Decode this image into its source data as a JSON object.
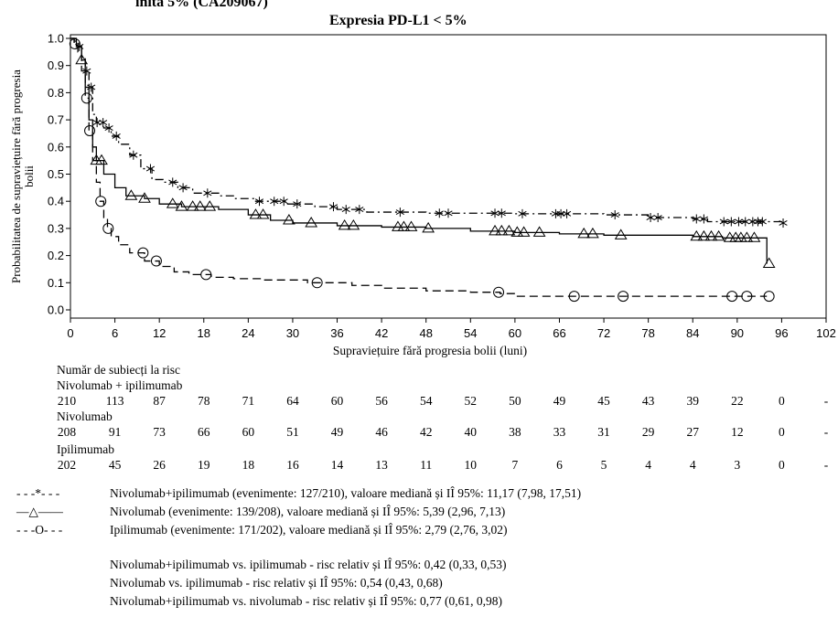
{
  "header": {
    "cut_title": "inita 5% (CA209067)",
    "subtitle": "Expresia PD-L1 < 5%"
  },
  "chart_data": {
    "type": "line",
    "subtitle": "Expresia PD-L1 < 5%",
    "xlabel": "Supraviețuire fără progresia bolii (luni)",
    "ylabel": "Probabilitatea de supraviețuire fără progresia bolii",
    "xlim": [
      0,
      102
    ],
    "ylim": [
      0,
      1.0
    ],
    "x_ticks": [
      0,
      6,
      12,
      18,
      24,
      30,
      36,
      42,
      48,
      54,
      60,
      66,
      72,
      78,
      84,
      90,
      96,
      102
    ],
    "y_ticks": [
      0.0,
      0.1,
      0.2,
      0.3,
      0.4,
      0.5,
      0.6,
      0.7,
      0.8,
      0.9,
      1.0
    ],
    "grid": false,
    "series": [
      {
        "name": "Nivolumab+ipilimumab",
        "color": "#000000",
        "line_style": "dash-dot",
        "marker": "star",
        "steps": [
          [
            0,
            1.0
          ],
          [
            0.5,
            0.99
          ],
          [
            1,
            0.97
          ],
          [
            1.5,
            0.93
          ],
          [
            2,
            0.88
          ],
          [
            2.5,
            0.82
          ],
          [
            3,
            0.72
          ],
          [
            3.5,
            0.69
          ],
          [
            4.5,
            0.67
          ],
          [
            5.5,
            0.64
          ],
          [
            6.5,
            0.61
          ],
          [
            8,
            0.57
          ],
          [
            9.5,
            0.52
          ],
          [
            11,
            0.48
          ],
          [
            12.5,
            0.47
          ],
          [
            14.5,
            0.45
          ],
          [
            16.5,
            0.43
          ],
          [
            20,
            0.42
          ],
          [
            22,
            0.41
          ],
          [
            25,
            0.4
          ],
          [
            29,
            0.39
          ],
          [
            33,
            0.38
          ],
          [
            36,
            0.37
          ],
          [
            40,
            0.36
          ],
          [
            48,
            0.356
          ],
          [
            60,
            0.354
          ],
          [
            72,
            0.35
          ],
          [
            78,
            0.34
          ],
          [
            84,
            0.335
          ],
          [
            86,
            0.325
          ],
          [
            96,
            0.32
          ]
        ],
        "censor_x": [
          1.2,
          2.2,
          2.8,
          3.6,
          4.4,
          5.2,
          6.2,
          8.5,
          10.8,
          13.8,
          15.2,
          18.5,
          25.5,
          27.5,
          28.8,
          30.6,
          35.5,
          37.2,
          39,
          44.5,
          49.8,
          51,
          57.3,
          58.2,
          61,
          65.5,
          66.2,
          67,
          73.5,
          78.3,
          79.3,
          84.5,
          85.5,
          88.2,
          89.2,
          90.2,
          91.1,
          92.1,
          92.8,
          93.4,
          96.2
        ]
      },
      {
        "name": "Nivolumab",
        "color": "#000000",
        "line_style": "solid",
        "marker": "triangle",
        "steps": [
          [
            0,
            1.0
          ],
          [
            0.8,
            0.97
          ],
          [
            1.5,
            0.92
          ],
          [
            2,
            0.82
          ],
          [
            2.5,
            0.7
          ],
          [
            3,
            0.6
          ],
          [
            3.5,
            0.55
          ],
          [
            4.5,
            0.5
          ],
          [
            6,
            0.45
          ],
          [
            7.5,
            0.42
          ],
          [
            10,
            0.41
          ],
          [
            12,
            0.39
          ],
          [
            15,
            0.38
          ],
          [
            20,
            0.37
          ],
          [
            24,
            0.35
          ],
          [
            27,
            0.33
          ],
          [
            30,
            0.32
          ],
          [
            36,
            0.31
          ],
          [
            42,
            0.305
          ],
          [
            48,
            0.3
          ],
          [
            54,
            0.29
          ],
          [
            60,
            0.285
          ],
          [
            66,
            0.28
          ],
          [
            72,
            0.275
          ],
          [
            84,
            0.27
          ],
          [
            88,
            0.265
          ],
          [
            94,
            0.25
          ],
          [
            94,
            0.17
          ]
        ],
        "censor_x": [
          1.5,
          3.5,
          4.2,
          8.2,
          10,
          13.8,
          15,
          16.5,
          17.5,
          18.8,
          25,
          26,
          29.5,
          32.5,
          37,
          38.2,
          44.2,
          45,
          46,
          48.3,
          57.3,
          58.2,
          59.2,
          60.3,
          61.2,
          63.3,
          69.3,
          70.5,
          74.3,
          84.5,
          85.5,
          86.5,
          87.5,
          89,
          89.8,
          90.5,
          91.3,
          92.3,
          94.3
        ]
      },
      {
        "name": "Ipilimumab",
        "color": "#000000",
        "line_style": "dashed",
        "marker": "circle",
        "steps": [
          [
            0,
            1.0
          ],
          [
            0.5,
            0.98
          ],
          [
            1,
            0.95
          ],
          [
            1.5,
            0.88
          ],
          [
            2,
            0.78
          ],
          [
            2.5,
            0.66
          ],
          [
            3,
            0.55
          ],
          [
            3.5,
            0.47
          ],
          [
            4,
            0.4
          ],
          [
            4.5,
            0.34
          ],
          [
            5,
            0.3
          ],
          [
            5.5,
            0.27
          ],
          [
            6.5,
            0.24
          ],
          [
            8,
            0.21
          ],
          [
            10,
            0.18
          ],
          [
            12,
            0.16
          ],
          [
            14,
            0.14
          ],
          [
            16,
            0.13
          ],
          [
            19,
            0.12
          ],
          [
            22,
            0.115
          ],
          [
            26,
            0.11
          ],
          [
            32,
            0.1
          ],
          [
            38,
            0.09
          ],
          [
            42,
            0.08
          ],
          [
            48,
            0.07
          ],
          [
            54,
            0.065
          ],
          [
            58,
            0.06
          ],
          [
            60,
            0.05
          ],
          [
            94,
            0.05
          ]
        ],
        "censor_x": [
          0.6,
          2.6,
          2.2,
          4.1,
          5.1,
          9.8,
          11.6,
          18.3,
          33.3,
          57.8,
          68,
          74.6,
          89.3,
          91.3,
          94.3
        ]
      }
    ]
  },
  "risk_table": {
    "heading": "Număr de subiecți la risc",
    "time_points": [
      0,
      6,
      12,
      18,
      24,
      30,
      36,
      42,
      48,
      54,
      60,
      66,
      72,
      78,
      84,
      90,
      96,
      102
    ],
    "groups": [
      {
        "label": "Nivolumab + ipilimumab",
        "values": [
          "210",
          "113",
          "87",
          "78",
          "71",
          "64",
          "60",
          "56",
          "54",
          "52",
          "50",
          "49",
          "45",
          "43",
          "39",
          "22",
          "0",
          "-"
        ]
      },
      {
        "label": "Nivolumab",
        "values": [
          "208",
          "91",
          "73",
          "66",
          "60",
          "51",
          "49",
          "46",
          "42",
          "40",
          "38",
          "33",
          "31",
          "29",
          "27",
          "12",
          "0",
          "-"
        ]
      },
      {
        "label": "Ipilimumab",
        "values": [
          "202",
          "45",
          "26",
          "19",
          "18",
          "16",
          "14",
          "13",
          "11",
          "10",
          "7",
          "6",
          "5",
          "4",
          "4",
          "3",
          "0",
          "-"
        ]
      }
    ]
  },
  "legend": [
    {
      "symbol": "- - -*- - -",
      "text": "Nivolumab+ipilimumab (evenimente: 127/210), valoare mediană și IÎ 95%: 11,17 (7,98, 17,51)"
    },
    {
      "symbol": "—△——",
      "text": "Nivolumab (evenimente: 139/208), valoare mediană și IÎ 95%: 5,39 (2,96, 7,13)"
    },
    {
      "symbol": "- - -O- - -",
      "text": "Ipilimumab (evenimente: 171/202), valoare mediană și IÎ 95%: 2,79 (2,76, 3,02)"
    }
  ],
  "hazard_ratios": [
    "Nivolumab+ipilimumab vs. ipilimumab - risc relativ și IÎ 95%: 0,42 (0,33, 0,53)",
    "Nivolumab vs. ipilimumab - risc relativ și IÎ 95%: 0,54 (0,43, 0,68)",
    "Nivolumab+ipilimumab vs. nivolumab - risc relativ și IÎ 95%: 0,77 (0,61, 0,98)"
  ]
}
